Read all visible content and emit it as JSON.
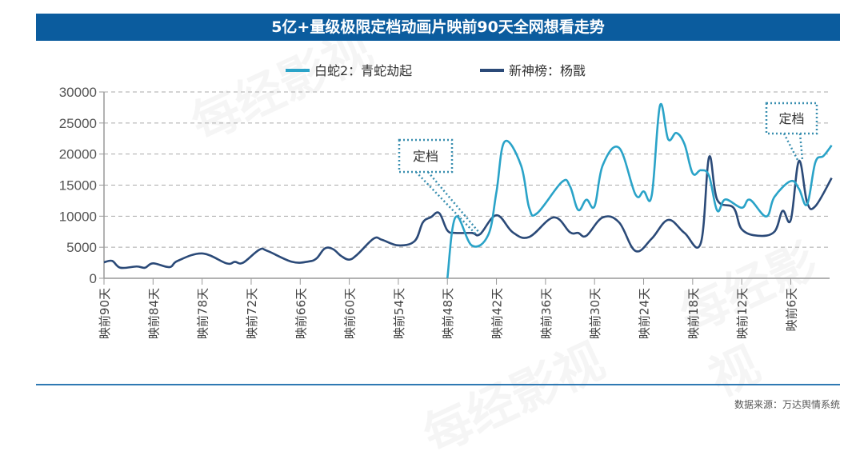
{
  "title": "5亿+量级极限定档动画片映前90天全网想看走势",
  "source": "数据来源：万达舆情系统",
  "watermark": "每经影视",
  "chart_data": {
    "type": "line",
    "title": "5亿+量级极限定档动画片映前90天全网想看走势",
    "xlabel": "",
    "ylabel": "",
    "x_unit": "days before release",
    "xlim": [
      90,
      1
    ],
    "ylim": [
      0,
      30000
    ],
    "yticks": [
      0,
      5000,
      10000,
      15000,
      20000,
      25000,
      30000
    ],
    "xtick_labels": [
      "映前90天",
      "映前84天",
      "映前78天",
      "映前72天",
      "映前66天",
      "映前60天",
      "映前54天",
      "映前48天",
      "映前42天",
      "映前36天",
      "映前30天",
      "映前24天",
      "映前18天",
      "映前12天",
      "映前6天"
    ],
    "xtick_days": [
      90,
      84,
      78,
      72,
      66,
      60,
      54,
      48,
      42,
      36,
      30,
      24,
      18,
      12,
      6
    ],
    "grid": "horizontal dashed",
    "legend_position": "top",
    "series": [
      {
        "name": "白蛇2：青蛇劫起",
        "color": "#2aa3c8",
        "x": [
          48,
          47,
          45,
          43,
          42,
          41,
          39,
          38,
          37,
          34,
          33,
          32,
          31,
          30,
          29,
          27,
          25,
          24,
          23,
          22,
          21,
          20,
          19,
          18,
          17,
          16,
          15,
          14,
          12,
          11,
          9,
          8,
          6,
          5,
          4,
          3,
          2,
          1
        ],
        "y": [
          0,
          9850,
          5270,
          7000,
          13900,
          22000,
          18200,
          11350,
          10500,
          15500,
          14800,
          11000,
          12650,
          11600,
          18200,
          21000,
          13500,
          14000,
          13400,
          27800,
          22400,
          23400,
          21600,
          16900,
          17400,
          16500,
          10900,
          12700,
          11350,
          12650,
          9950,
          13100,
          15650,
          14400,
          11900,
          18650,
          19700,
          21400
        ]
      },
      {
        "name": "新神榜：杨戬",
        "color": "#2b4a78",
        "x": [
          90,
          89,
          88,
          86,
          85,
          84,
          82,
          81,
          78,
          75,
          74,
          73,
          71,
          70,
          67,
          65,
          64,
          63,
          62,
          61,
          60,
          59,
          57,
          56,
          54,
          52,
          51,
          50,
          49,
          48,
          47,
          45,
          44,
          42,
          40,
          38,
          35,
          33,
          32,
          31,
          29,
          27,
          25,
          23,
          21,
          19,
          17,
          16,
          15,
          13,
          12,
          10,
          8,
          7,
          6,
          5,
          4,
          3,
          1
        ],
        "y": [
          2570,
          2800,
          1700,
          1900,
          1700,
          2400,
          1800,
          2800,
          4000,
          2400,
          2650,
          2500,
          4600,
          4400,
          2650,
          2700,
          3200,
          4800,
          4700,
          3600,
          3000,
          3850,
          6400,
          6200,
          5300,
          6000,
          9000,
          9850,
          10500,
          7700,
          7300,
          7300,
          7100,
          10150,
          7400,
          6650,
          9800,
          7400,
          7300,
          6850,
          9800,
          9000,
          4400,
          6400,
          9400,
          7300,
          5700,
          19500,
          12650,
          11350,
          7900,
          6850,
          7500,
          10850,
          9400,
          18900,
          12200,
          11600,
          16150
        ]
      }
    ],
    "annotations": [
      {
        "text": "定档",
        "series": "白蛇2：青蛇劫起",
        "day": 43
      },
      {
        "text": "定档",
        "series": "新神榜：杨戬",
        "day": 5
      }
    ]
  }
}
